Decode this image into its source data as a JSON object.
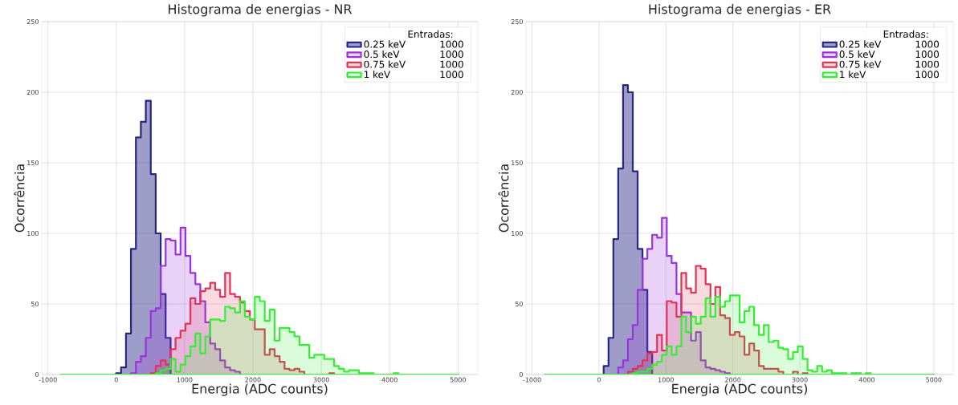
{
  "chart_data": [
    {
      "type": "histogram",
      "title": "Histograma de energias - NR",
      "xlabel": "Energia (ADC counts)",
      "ylabel": "Ocorrência",
      "legend_title": "Entradas:",
      "legend": "top right",
      "grid": true,
      "xlim": [
        -1090,
        5290
      ],
      "ylim": [
        0,
        250
      ],
      "xticks": [
        -1000,
        0,
        1000,
        2000,
        3000,
        4000,
        5000
      ],
      "yticks": [
        0,
        50,
        100,
        150,
        200,
        250
      ],
      "bins": [
        -800,
        -727.5,
        -655,
        -582.5,
        -510,
        -437.5,
        -365,
        -292.5,
        -220,
        -147.5,
        -75,
        -2.5,
        70,
        142.5,
        215,
        287.5,
        360,
        432.5,
        505,
        577.5,
        650,
        722.5,
        795,
        867.5,
        940,
        1012.5,
        1085,
        1157.5,
        1230,
        1302.5,
        1375,
        1447.5,
        1520,
        1592.5,
        1665,
        1737.5,
        1810,
        1882.5,
        1955,
        2027.5,
        2100,
        2172.5,
        2245,
        2317.5,
        2390,
        2462.5,
        2535,
        2607.5,
        2680,
        2752.5,
        2825,
        2897.5,
        2970,
        3042.5,
        3115,
        3187.5,
        3260,
        3332.5,
        3405,
        3477.5,
        3550,
        3622.5,
        3695,
        3767.5,
        3840,
        3912.5,
        3985,
        4057.5,
        4130,
        4202.5,
        4275,
        4347.5,
        4420,
        4492.5,
        4565,
        4637.5,
        4710,
        4782.5,
        4855,
        4927.5,
        5000
      ],
      "annotations": [
        "1000",
        "1000",
        "1000",
        "1000"
      ],
      "series": [
        {
          "name": "0.25 keV",
          "color": "#262686",
          "values": [
            0,
            0,
            0,
            0,
            0,
            0,
            0,
            0,
            0,
            0,
            0,
            1,
            5,
            29,
            89,
            168,
            179,
            194,
            142,
            100,
            57,
            26,
            0,
            0,
            0,
            0,
            0,
            0,
            0,
            0,
            0,
            0,
            0,
            0,
            0,
            0,
            0,
            0,
            0,
            0,
            0,
            0,
            0,
            0,
            0,
            0,
            0,
            0,
            0,
            0,
            0,
            0,
            0,
            0,
            0,
            0,
            0,
            0,
            0,
            0,
            0,
            0,
            0,
            0,
            0,
            0,
            0,
            0,
            0,
            0,
            0,
            0,
            0,
            0,
            0,
            0,
            0,
            0,
            0,
            0
          ]
        },
        {
          "name": "0.5 keV",
          "color": "#9933dd",
          "values": [
            0,
            0,
            0,
            0,
            0,
            0,
            0,
            0,
            0,
            0,
            0,
            0,
            0,
            0,
            1,
            9,
            13,
            26,
            45,
            47,
            77,
            96,
            95,
            85,
            104,
            84,
            72,
            64,
            52,
            37,
            22,
            18,
            10,
            5,
            3,
            2,
            0,
            0,
            0,
            0,
            0,
            0,
            0,
            0,
            0,
            0,
            0,
            0,
            0,
            0,
            0,
            0,
            0,
            0,
            0,
            0,
            0,
            0,
            0,
            0,
            0,
            0,
            0,
            0,
            0,
            0,
            0,
            0,
            0,
            0,
            0,
            0,
            0,
            0,
            0,
            0,
            0,
            0,
            0,
            0
          ]
        },
        {
          "name": "0.75 keV",
          "color": "#e03355",
          "values": [
            0,
            0,
            0,
            0,
            0,
            0,
            0,
            0,
            0,
            0,
            0,
            0,
            0,
            0,
            0,
            0,
            0,
            0,
            1,
            6,
            10,
            7,
            18,
            26,
            31,
            36,
            54,
            50,
            59,
            61,
            65,
            60,
            55,
            72,
            57,
            55,
            51,
            45,
            39,
            32,
            32,
            14,
            18,
            13,
            9,
            4,
            3,
            4,
            2,
            0,
            0,
            0,
            0,
            0,
            1,
            0,
            0,
            0,
            0,
            0,
            0,
            0,
            0,
            0,
            0,
            0,
            0,
            0,
            0,
            0,
            0,
            0,
            0,
            0,
            0,
            0,
            0,
            0,
            0,
            0
          ]
        },
        {
          "name": "1 keV",
          "color": "#33ee33",
          "values": [
            0,
            0,
            0,
            0,
            0,
            0,
            0,
            0,
            0,
            0,
            0,
            0,
            0,
            0,
            0,
            0,
            0,
            0,
            0,
            1,
            3,
            4,
            11,
            2,
            7,
            13,
            20,
            29,
            15,
            27,
            39,
            39,
            38,
            48,
            47,
            44,
            52,
            41,
            39,
            55,
            52,
            38,
            46,
            24,
            33,
            33,
            30,
            27,
            21,
            21,
            12,
            14,
            14,
            11,
            11,
            6,
            4,
            2,
            3,
            3,
            1,
            1,
            1,
            0,
            0,
            0,
            0,
            1,
            0,
            0,
            0,
            0,
            0,
            0,
            0,
            0,
            0,
            0,
            0,
            0
          ]
        }
      ]
    },
    {
      "type": "histogram",
      "title": "Histograma de energias - ER",
      "xlabel": "Energia (ADC counts)",
      "ylabel": "Ocorrência",
      "legend_title": "Entradas:",
      "legend": "top right",
      "grid": true,
      "xlim": [
        -1090,
        5290
      ],
      "ylim": [
        0,
        250
      ],
      "xticks": [
        -1000,
        0,
        1000,
        2000,
        3000,
        4000,
        5000
      ],
      "yticks": [
        0,
        50,
        100,
        150,
        200,
        250
      ],
      "bins": [
        -800,
        -727.5,
        -655,
        -582.5,
        -510,
        -437.5,
        -365,
        -292.5,
        -220,
        -147.5,
        -75,
        -2.5,
        70,
        142.5,
        215,
        287.5,
        360,
        432.5,
        505,
        577.5,
        650,
        722.5,
        795,
        867.5,
        940,
        1012.5,
        1085,
        1157.5,
        1230,
        1302.5,
        1375,
        1447.5,
        1520,
        1592.5,
        1665,
        1737.5,
        1810,
        1882.5,
        1955,
        2027.5,
        2100,
        2172.5,
        2245,
        2317.5,
        2390,
        2462.5,
        2535,
        2607.5,
        2680,
        2752.5,
        2825,
        2897.5,
        2970,
        3042.5,
        3115,
        3187.5,
        3260,
        3332.5,
        3405,
        3477.5,
        3550,
        3622.5,
        3695,
        3767.5,
        3840,
        3912.5,
        3985,
        4057.5,
        4130,
        4202.5,
        4275,
        4347.5,
        4420,
        4492.5,
        4565,
        4637.5,
        4710,
        4782.5,
        4855,
        4927.5,
        5000
      ],
      "annotations": [
        "1000",
        "1000",
        "1000",
        "1000"
      ],
      "series": [
        {
          "name": "0.25 keV",
          "color": "#262686",
          "values": [
            0,
            0,
            0,
            0,
            0,
            0,
            0,
            0,
            0,
            0,
            0,
            0,
            6,
            26,
            96,
            146,
            205,
            200,
            144,
            89,
            60,
            16,
            0,
            0,
            0,
            0,
            0,
            0,
            0,
            0,
            0,
            0,
            0,
            0,
            0,
            0,
            0,
            0,
            0,
            0,
            0,
            0,
            0,
            0,
            0,
            0,
            0,
            0,
            0,
            0,
            0,
            0,
            0,
            0,
            0,
            0,
            0,
            0,
            0,
            0,
            0,
            0,
            0,
            0,
            0,
            0,
            0,
            0,
            0,
            0,
            0,
            0,
            0,
            0,
            0,
            0,
            0,
            0,
            0,
            0
          ]
        },
        {
          "name": "0.5 keV",
          "color": "#9933dd",
          "values": [
            0,
            0,
            0,
            0,
            0,
            0,
            0,
            0,
            0,
            0,
            0,
            0,
            0,
            0,
            0,
            5,
            10,
            25,
            35,
            60,
            82,
            89,
            99,
            97,
            111,
            84,
            79,
            57,
            44,
            44,
            24,
            30,
            10,
            5,
            4,
            3,
            2,
            1,
            0,
            0,
            0,
            0,
            0,
            0,
            0,
            0,
            0,
            0,
            0,
            0,
            0,
            0,
            0,
            0,
            0,
            0,
            0,
            0,
            0,
            0,
            0,
            0,
            0,
            0,
            0,
            0,
            0,
            0,
            0,
            0,
            0,
            0,
            0,
            0,
            0,
            0,
            0,
            0,
            0,
            0
          ]
        },
        {
          "name": "0.75 keV",
          "color": "#e03355",
          "values": [
            0,
            0,
            0,
            0,
            0,
            0,
            0,
            0,
            0,
            0,
            0,
            0,
            0,
            0,
            0,
            0,
            0,
            2,
            4,
            6,
            10,
            15,
            16,
            28,
            17,
            52,
            51,
            41,
            72,
            61,
            58,
            77,
            75,
            64,
            50,
            62,
            42,
            40,
            28,
            30,
            27,
            14,
            22,
            17,
            6,
            4,
            4,
            4,
            2,
            0,
            0,
            2,
            0,
            1,
            0,
            0,
            0,
            0,
            0,
            0,
            0,
            0,
            0,
            0,
            0,
            0,
            0,
            0,
            0,
            0,
            0,
            0,
            0,
            0,
            0,
            0,
            0,
            0,
            0,
            0
          ]
        },
        {
          "name": "1 keV",
          "color": "#33ee33",
          "values": [
            0,
            0,
            0,
            0,
            0,
            0,
            0,
            0,
            0,
            0,
            0,
            0,
            0,
            0,
            0,
            0,
            0,
            0,
            1,
            2,
            2,
            4,
            7,
            9,
            14,
            20,
            14,
            20,
            41,
            30,
            41,
            36,
            41,
            54,
            41,
            55,
            48,
            52,
            56,
            56,
            37,
            45,
            48,
            35,
            28,
            35,
            23,
            24,
            19,
            18,
            11,
            16,
            20,
            11,
            3,
            2,
            6,
            2,
            3,
            1,
            1,
            1,
            0,
            1,
            1,
            0,
            1,
            0,
            0,
            0,
            0,
            0,
            0,
            0,
            0,
            0,
            0,
            0,
            0,
            0
          ]
        }
      ]
    }
  ]
}
